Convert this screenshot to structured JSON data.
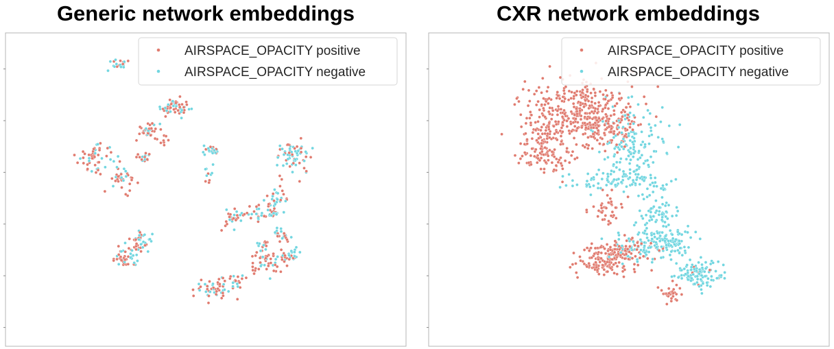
{
  "chart_data": [
    {
      "type": "scatter",
      "title": "Generic network embeddings",
      "xlabel": "",
      "ylabel": "",
      "grid": false,
      "axis_ticks": "unlabeled",
      "legend": {
        "placement": "top-right",
        "entries": [
          "AIRSPACE_OPACITY positive",
          "AIRSPACE_OPACITY negative"
        ]
      },
      "xlim": [
        0,
        100
      ],
      "ylim": [
        0,
        100
      ],
      "series": [
        {
          "name": "AIRSPACE_OPACITY positive",
          "color": "#e07b6f",
          "clusters": [
            {
              "cx": 28,
              "cy": 90.5,
              "sx": 1.4,
              "sy": 0.9,
              "n": 8
            },
            {
              "cx": 42.5,
              "cy": 76,
              "sx": 2.2,
              "sy": 1.5,
              "n": 32
            },
            {
              "cx": 35.5,
              "cy": 69,
              "sx": 1.4,
              "sy": 1.2,
              "n": 24
            },
            {
              "cx": 39.5,
              "cy": 66,
              "sx": 1.2,
              "sy": 1.2,
              "n": 8
            },
            {
              "cx": 22.5,
              "cy": 60.5,
              "sx": 2.2,
              "sy": 2.1,
              "n": 36
            },
            {
              "cx": 34.5,
              "cy": 60,
              "sx": 0.9,
              "sy": 0.8,
              "n": 10
            },
            {
              "cx": 29.5,
              "cy": 53.5,
              "sx": 1.8,
              "sy": 2.0,
              "n": 26
            },
            {
              "cx": 51.5,
              "cy": 62.5,
              "sx": 1.0,
              "sy": 0.8,
              "n": 8
            },
            {
              "cx": 50.5,
              "cy": 55.5,
              "sx": 0.5,
              "sy": 1.2,
              "n": 4
            },
            {
              "cx": 71.5,
              "cy": 60.5,
              "sx": 2.2,
              "sy": 2.5,
              "n": 26
            },
            {
              "cx": 68,
              "cy": 48,
              "sx": 1.2,
              "sy": 2.5,
              "n": 12
            },
            {
              "cx": 56.5,
              "cy": 41,
              "sx": 1.3,
              "sy": 1.4,
              "n": 16
            },
            {
              "cx": 62.5,
              "cy": 41.5,
              "sx": 2.0,
              "sy": 1.4,
              "n": 12
            },
            {
              "cx": 66.5,
              "cy": 43,
              "sx": 1.4,
              "sy": 1.8,
              "n": 12
            },
            {
              "cx": 69,
              "cy": 35.5,
              "sx": 1.1,
              "sy": 1.3,
              "n": 10
            },
            {
              "cx": 64,
              "cy": 32,
              "sx": 1.0,
              "sy": 1.0,
              "n": 8
            },
            {
              "cx": 70.5,
              "cy": 28,
              "sx": 1.2,
              "sy": 1.3,
              "n": 10
            },
            {
              "cx": 65.5,
              "cy": 26.5,
              "sx": 2.2,
              "sy": 1.8,
              "n": 36
            },
            {
              "cx": 33.5,
              "cy": 33.5,
              "sx": 1.6,
              "sy": 1.6,
              "n": 20
            },
            {
              "cx": 29.5,
              "cy": 28.5,
              "sx": 1.7,
              "sy": 1.7,
              "n": 24
            },
            {
              "cx": 53,
              "cy": 18.5,
              "sx": 2.6,
              "sy": 1.8,
              "n": 34
            },
            {
              "cx": 57.5,
              "cy": 21,
              "sx": 1.2,
              "sy": 1.2,
              "n": 8
            }
          ]
        },
        {
          "name": "AIRSPACE_OPACITY negative",
          "color": "#72d6e0",
          "clusters": [
            {
              "cx": 28,
              "cy": 90,
              "sx": 1.3,
              "sy": 0.9,
              "n": 12
            },
            {
              "cx": 43,
              "cy": 76.5,
              "sx": 2.0,
              "sy": 1.4,
              "n": 22
            },
            {
              "cx": 36,
              "cy": 69,
              "sx": 1.3,
              "sy": 1.2,
              "n": 12
            },
            {
              "cx": 23,
              "cy": 60,
              "sx": 2.0,
              "sy": 2.0,
              "n": 16
            },
            {
              "cx": 34.5,
              "cy": 60,
              "sx": 0.9,
              "sy": 0.8,
              "n": 6
            },
            {
              "cx": 29.5,
              "cy": 54,
              "sx": 1.6,
              "sy": 1.8,
              "n": 10
            },
            {
              "cx": 51.5,
              "cy": 62.5,
              "sx": 1.0,
              "sy": 0.8,
              "n": 14
            },
            {
              "cx": 50.5,
              "cy": 56,
              "sx": 0.6,
              "sy": 1.2,
              "n": 6
            },
            {
              "cx": 71.5,
              "cy": 61,
              "sx": 2.2,
              "sy": 2.5,
              "n": 40
            },
            {
              "cx": 68,
              "cy": 48.5,
              "sx": 1.2,
              "sy": 2.5,
              "n": 10
            },
            {
              "cx": 56.5,
              "cy": 41,
              "sx": 1.2,
              "sy": 1.3,
              "n": 10
            },
            {
              "cx": 62.5,
              "cy": 42,
              "sx": 2.0,
              "sy": 1.4,
              "n": 10
            },
            {
              "cx": 66.5,
              "cy": 43.5,
              "sx": 1.4,
              "sy": 1.8,
              "n": 18
            },
            {
              "cx": 69,
              "cy": 36,
              "sx": 1.1,
              "sy": 1.3,
              "n": 12
            },
            {
              "cx": 64,
              "cy": 32,
              "sx": 1.0,
              "sy": 1.0,
              "n": 6
            },
            {
              "cx": 72,
              "cy": 29.5,
              "sx": 1.1,
              "sy": 1.1,
              "n": 14
            },
            {
              "cx": 66,
              "cy": 27,
              "sx": 2.2,
              "sy": 1.8,
              "n": 14
            },
            {
              "cx": 34,
              "cy": 33.5,
              "sx": 1.6,
              "sy": 1.6,
              "n": 24
            },
            {
              "cx": 30,
              "cy": 28.5,
              "sx": 1.7,
              "sy": 1.7,
              "n": 16
            },
            {
              "cx": 53.5,
              "cy": 19,
              "sx": 2.5,
              "sy": 1.8,
              "n": 20
            },
            {
              "cx": 57.5,
              "cy": 21,
              "sx": 1.2,
              "sy": 1.2,
              "n": 6
            }
          ]
        }
      ]
    },
    {
      "type": "scatter",
      "title": "CXR network embeddings",
      "xlabel": "",
      "ylabel": "",
      "grid": false,
      "axis_ticks": "unlabeled",
      "legend": {
        "placement": "top-right",
        "entries": [
          "AIRSPACE_OPACITY positive",
          "AIRSPACE_OPACITY negative"
        ]
      },
      "xlim": [
        0,
        100
      ],
      "ylim": [
        0,
        100
      ],
      "series": [
        {
          "name": "AIRSPACE_OPACITY positive",
          "color": "#e07b6f",
          "clusters": [
            {
              "cx": 37,
              "cy": 74,
              "sx": 6.5,
              "sy": 5.5,
              "n": 380
            },
            {
              "cx": 45,
              "cy": 70,
              "sx": 4.0,
              "sy": 4.0,
              "n": 90
            },
            {
              "cx": 29,
              "cy": 63,
              "sx": 3.5,
              "sy": 4.0,
              "n": 120
            },
            {
              "cx": 45,
              "cy": 44,
              "sx": 2.0,
              "sy": 2.3,
              "n": 40
            },
            {
              "cx": 45,
              "cy": 28,
              "sx": 3.6,
              "sy": 2.6,
              "n": 180
            },
            {
              "cx": 53,
              "cy": 31,
              "sx": 3.0,
              "sy": 2.0,
              "n": 30
            },
            {
              "cx": 60.5,
              "cy": 17,
              "sx": 1.6,
              "sy": 1.6,
              "n": 30
            },
            {
              "cx": 68,
              "cy": 22,
              "sx": 2.5,
              "sy": 1.6,
              "n": 10
            }
          ]
        },
        {
          "name": "AIRSPACE_OPACITY negative",
          "color": "#72d6e0",
          "clusters": [
            {
              "cx": 51,
              "cy": 65,
              "sx": 4.5,
              "sy": 6.5,
              "n": 140
            },
            {
              "cx": 50,
              "cy": 53,
              "sx": 5.0,
              "sy": 1.6,
              "n": 60
            },
            {
              "cx": 39,
              "cy": 52,
              "sx": 3.0,
              "sy": 1.6,
              "n": 20
            },
            {
              "cx": 57,
              "cy": 50,
              "sx": 2.5,
              "sy": 2.0,
              "n": 20
            },
            {
              "cx": 57,
              "cy": 42,
              "sx": 2.2,
              "sy": 2.0,
              "n": 50
            },
            {
              "cx": 59,
              "cy": 33,
              "sx": 3.5,
              "sy": 2.3,
              "n": 130
            },
            {
              "cx": 51,
              "cy": 31,
              "sx": 3.0,
              "sy": 2.2,
              "n": 40
            },
            {
              "cx": 67,
              "cy": 23,
              "sx": 2.6,
              "sy": 2.0,
              "n": 110
            }
          ]
        }
      ]
    }
  ]
}
